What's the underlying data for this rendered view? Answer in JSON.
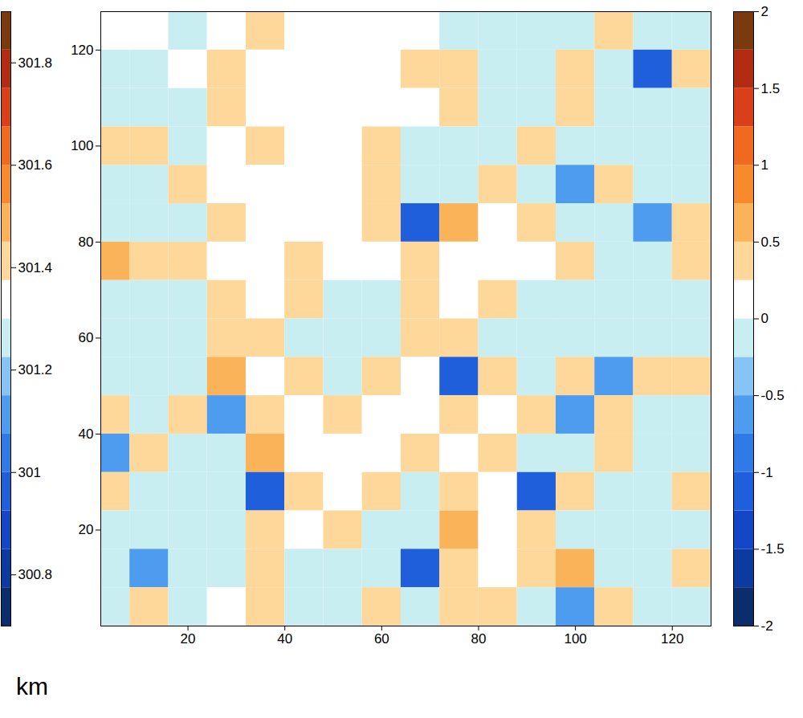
{
  "chart_data": {
    "type": "heatmap",
    "xlabel": "km",
    "x": [
      4,
      12,
      20,
      28,
      36,
      44,
      52,
      60,
      68,
      76,
      84,
      92,
      100,
      108,
      116,
      124
    ],
    "y": [
      124,
      116,
      108,
      100,
      92,
      84,
      76,
      68,
      60,
      52,
      44,
      36,
      28,
      20,
      12,
      4
    ],
    "values": [
      [
        0.1,
        0.1,
        -0.1,
        0.1,
        0.4,
        0.1,
        0.1,
        0.1,
        0.1,
        -0.1,
        -0.1,
        -0.1,
        -0.1,
        0.4,
        -0.1,
        -0.1
      ],
      [
        -0.1,
        -0.1,
        0.1,
        0.4,
        0.1,
        0.1,
        0.1,
        0.1,
        0.4,
        0.4,
        -0.1,
        -0.1,
        0.4,
        -0.1,
        -1.2,
        0.4
      ],
      [
        -0.1,
        -0.1,
        -0.1,
        0.4,
        0.1,
        0.1,
        0.1,
        0.1,
        0.1,
        0.4,
        -0.1,
        -0.1,
        0.4,
        -0.1,
        -0.1,
        -0.1
      ],
      [
        0.4,
        0.4,
        -0.1,
        0.1,
        0.4,
        0.1,
        0.1,
        0.4,
        -0.1,
        -0.1,
        -0.1,
        0.4,
        -0.1,
        -0.1,
        -0.1,
        -0.1
      ],
      [
        -0.1,
        -0.1,
        0.4,
        0.1,
        0.1,
        0.1,
        0.1,
        0.4,
        -0.1,
        -0.1,
        0.4,
        -0.1,
        -0.6,
        0.4,
        -0.1,
        -0.1
      ],
      [
        -0.1,
        -0.1,
        -0.1,
        0.4,
        0.1,
        0.1,
        0.1,
        0.4,
        -1.2,
        0.6,
        0.1,
        0.4,
        -0.1,
        -0.1,
        -0.6,
        0.4
      ],
      [
        0.6,
        0.4,
        0.4,
        0.1,
        0.1,
        0.4,
        0.1,
        0.1,
        0.4,
        0.1,
        0.1,
        0.1,
        0.4,
        -0.1,
        -0.1,
        0.4
      ],
      [
        -0.1,
        -0.1,
        -0.1,
        0.4,
        0.1,
        0.4,
        -0.1,
        -0.1,
        0.4,
        0.1,
        0.4,
        -0.1,
        -0.1,
        -0.1,
        -0.1,
        -0.1
      ],
      [
        -0.1,
        -0.1,
        -0.1,
        0.4,
        0.4,
        -0.1,
        -0.1,
        -0.1,
        0.4,
        0.4,
        -0.1,
        -0.1,
        -0.1,
        -0.1,
        -0.1,
        -0.1
      ],
      [
        -0.1,
        -0.1,
        -0.1,
        0.6,
        0.1,
        0.4,
        -0.1,
        0.4,
        0.1,
        -1.2,
        0.4,
        -0.1,
        0.4,
        -0.6,
        0.4,
        0.4
      ],
      [
        0.4,
        -0.1,
        0.4,
        -0.6,
        0.4,
        0.1,
        0.4,
        0.1,
        0.1,
        0.4,
        0.1,
        0.4,
        -0.6,
        0.4,
        -0.1,
        -0.1
      ],
      [
        -0.6,
        0.4,
        -0.1,
        -0.1,
        0.6,
        0.1,
        0.1,
        0.1,
        0.4,
        0.1,
        0.4,
        -0.1,
        -0.1,
        0.4,
        -0.1,
        -0.1
      ],
      [
        0.4,
        -0.1,
        -0.1,
        -0.1,
        -1.2,
        0.4,
        0.1,
        0.4,
        -0.1,
        0.4,
        0.1,
        -1.2,
        0.4,
        -0.1,
        -0.1,
        0.4
      ],
      [
        -0.1,
        -0.1,
        -0.1,
        -0.1,
        0.4,
        0.1,
        0.4,
        -0.1,
        -0.1,
        0.6,
        0.1,
        0.4,
        -0.1,
        -0.1,
        -0.1,
        -0.1
      ],
      [
        -0.1,
        -0.6,
        -0.1,
        -0.1,
        0.4,
        -0.1,
        -0.1,
        -0.1,
        -1.2,
        0.4,
        0.1,
        0.4,
        0.6,
        -0.1,
        -0.1,
        0.4
      ],
      [
        -0.1,
        0.4,
        -0.1,
        0.1,
        0.4,
        -0.1,
        -0.1,
        0.4,
        -0.1,
        0.4,
        0.4,
        -0.1,
        -0.6,
        0.4,
        -0.1,
        -0.1
      ]
    ],
    "xlim": [
      2,
      128
    ],
    "ylim": [
      0,
      128
    ],
    "xticks": [
      20,
      40,
      60,
      80,
      100,
      120
    ],
    "yticks": [
      20,
      40,
      60,
      80,
      100,
      120
    ],
    "colors": [
      "#0b2d6b",
      "#0b3aa0",
      "#1446c8",
      "#1f5fdc",
      "#2f7ae6",
      "#4d9cf0",
      "#86c4f5",
      "#c9eef2",
      "#ffffff",
      "#fdd89a",
      "#fbb35a",
      "#f78a2c",
      "#ef6a1e",
      "#d9401a",
      "#b32b10",
      "#7a3a0e"
    ],
    "colorbar": {
      "levels": [
        -2,
        -1.75,
        -1.5,
        -1.25,
        -1,
        -0.75,
        -0.5,
        -0.25,
        0,
        0.25,
        0.5,
        0.75,
        1,
        1.25,
        1.5,
        1.75,
        2
      ],
      "range": [
        -2,
        2
      ],
      "ticks": [
        -2,
        -1.5,
        -1,
        -0.5,
        0,
        0.5,
        1,
        1.5,
        2
      ]
    },
    "colorbar2": {
      "range": [
        300.7,
        301.9
      ],
      "ticks": [
        300.8,
        301,
        301.2,
        301.4,
        301.6,
        301.8
      ]
    }
  }
}
